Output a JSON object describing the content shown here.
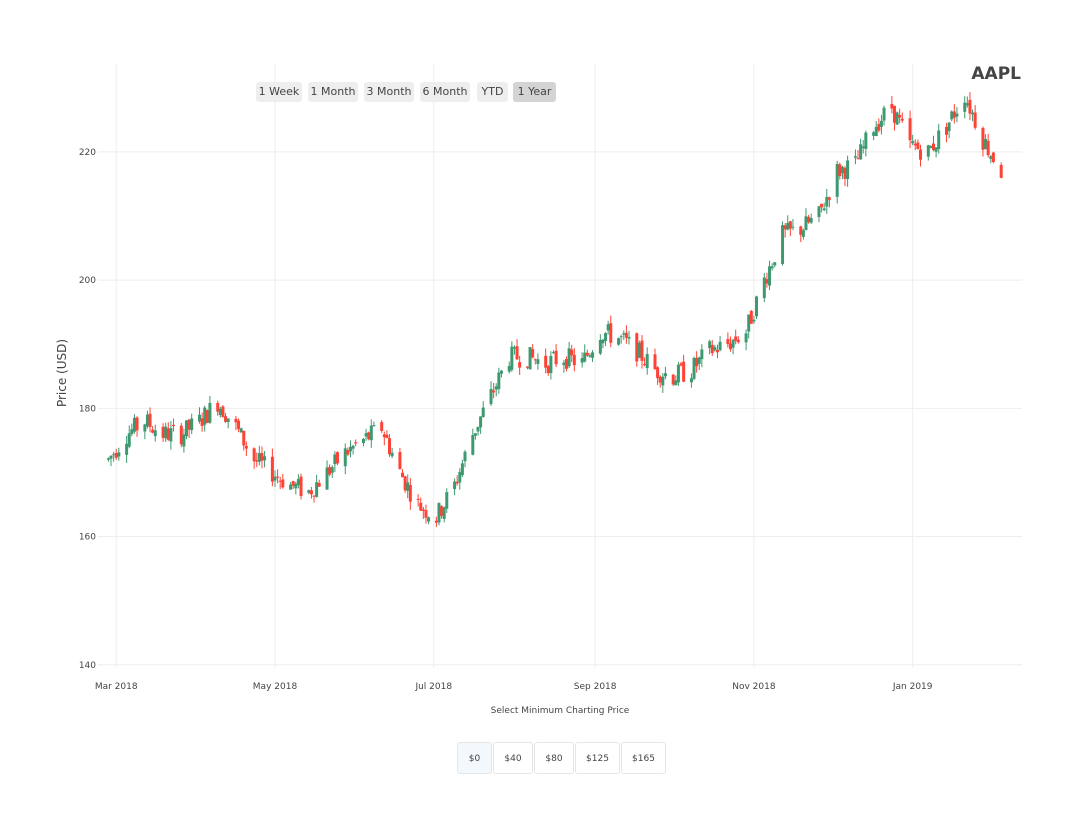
{
  "title": "AAPL",
  "range_buttons": [
    "1 Week",
    "1 Month",
    "3 Month",
    "6 Month",
    "YTD",
    "1 Year"
  ],
  "active_range": "1 Year",
  "min_price_label": "Select Minimum Charting Price",
  "min_price_buttons": [
    "$0",
    "$40",
    "$80",
    "$125",
    "$165"
  ],
  "active_min_price": "$0",
  "colors": {
    "increasing": "#3d9970",
    "decreasing": "#ff4136",
    "grid": "#eeeeee"
  },
  "chart_data": {
    "type": "candlestick",
    "title": "AAPL",
    "ylabel": "Price (USD)",
    "xlabel": "",
    "ylim": [
      139.5,
      233.7
    ],
    "xlim": [
      "2018-02-22",
      "2019-02-12"
    ],
    "grid": true,
    "yticks": [
      140,
      160,
      180,
      200,
      220
    ],
    "xticks": [
      {
        "date": "2018-03-01",
        "label": "Mar 2018"
      },
      {
        "date": "2018-05-01",
        "label": "May 2018"
      },
      {
        "date": "2018-07-01",
        "label": "Jul 2018"
      },
      {
        "date": "2018-09-01",
        "label": "Sep 2018"
      },
      {
        "date": "2018-11-01",
        "label": "Nov 2018"
      },
      {
        "date": "2019-01-01",
        "label": "Jan 2019"
      }
    ],
    "series_close": [
      [
        "2018-02-26",
        172
      ],
      [
        "2018-03-05",
        176
      ],
      [
        "2018-03-12",
        178
      ],
      [
        "2018-03-19",
        176
      ],
      [
        "2018-03-26",
        176
      ],
      [
        "2018-04-02",
        178
      ],
      [
        "2018-04-09",
        181
      ],
      [
        "2018-04-16",
        177
      ],
      [
        "2018-04-23",
        172
      ],
      [
        "2018-04-30",
        170
      ],
      [
        "2018-05-07",
        168
      ],
      [
        "2018-05-14",
        167
      ],
      [
        "2018-05-21",
        170
      ],
      [
        "2018-05-28",
        173
      ],
      [
        "2018-06-04",
        175
      ],
      [
        "2018-06-11",
        177
      ],
      [
        "2018-06-18",
        170
      ],
      [
        "2018-06-25",
        165
      ],
      [
        "2018-07-02",
        163
      ],
      [
        "2018-07-09",
        168
      ],
      [
        "2018-07-16",
        176
      ],
      [
        "2018-07-23",
        182
      ],
      [
        "2018-07-30",
        188
      ],
      [
        "2018-08-06",
        188
      ],
      [
        "2018-08-13",
        187
      ],
      [
        "2018-08-20",
        188
      ],
      [
        "2018-08-27",
        187
      ],
      [
        "2018-09-03",
        192
      ],
      [
        "2018-09-10",
        191
      ],
      [
        "2018-09-17",
        189
      ],
      [
        "2018-09-24",
        186
      ],
      [
        "2018-10-01",
        185
      ],
      [
        "2018-10-08",
        186
      ],
      [
        "2018-10-15",
        189
      ],
      [
        "2018-10-22",
        190
      ],
      [
        "2018-10-29",
        192
      ],
      [
        "2018-11-05",
        200
      ],
      [
        "2018-11-12",
        207
      ],
      [
        "2018-11-19",
        208
      ],
      [
        "2018-11-26",
        210
      ],
      [
        "2018-12-03",
        217
      ],
      [
        "2018-12-10",
        218
      ],
      [
        "2018-12-17",
        224
      ],
      [
        "2018-12-24",
        227
      ],
      [
        "2018-12-31",
        221
      ],
      [
        "2019-01-07",
        220
      ],
      [
        "2019-01-14",
        224
      ],
      [
        "2019-01-21",
        229
      ],
      [
        "2019-01-28",
        222
      ],
      [
        "2019-02-04",
        217
      ]
    ]
  }
}
